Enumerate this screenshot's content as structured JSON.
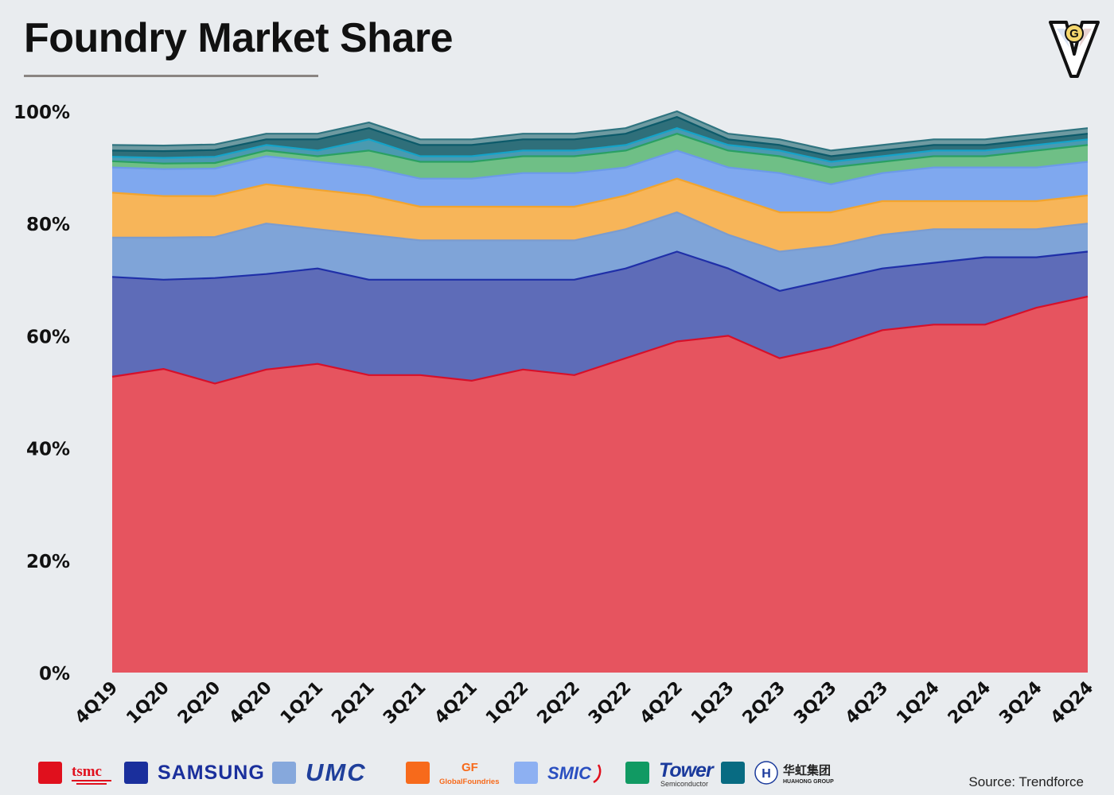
{
  "header": {
    "title": "Foundry Market Share"
  },
  "footer": {
    "source": "Source: Trendforce"
  },
  "colors": {
    "background": "#e9ecef",
    "tsmc": "#e6545f",
    "samsung": "#5e6cb8",
    "umc": "#7fa4d8",
    "globalfoundries": "#f7b559",
    "smic": "#7fa8ef",
    "tower": "#6fbf86",
    "vis": "#4a9ab0",
    "pss": "#2f6f7a",
    "hua_hong": "#6e9aa1"
  },
  "legend": [
    {
      "name": "tsmc",
      "swatch": "#e0101d",
      "logo_text": "tsmc",
      "icon": "tsmc-logo"
    },
    {
      "name": "SAMSUNG",
      "swatch": "#1a2f9c",
      "logo_text": "SAMSUNG",
      "icon": "samsung-logo"
    },
    {
      "name": "UMC",
      "swatch": "#86a8dc",
      "logo_text": "UMC",
      "icon": "umc-logo"
    },
    {
      "name": "GlobalFoundries",
      "swatch": "#f76a1b",
      "logo_text": "GlobalFoundries",
      "icon": "globalfoundries-logo"
    },
    {
      "name": "SMIC",
      "swatch": "#8db0f2",
      "logo_text": "SMIC",
      "icon": "smic-logo"
    },
    {
      "name": "Tower Semiconductor",
      "swatch": "#119a63",
      "logo_text": "Tower",
      "logo_subtext": "Semiconductor",
      "icon": "tower-logo"
    },
    {
      "name": "HUAHONG GROUP",
      "swatch": "#086b82",
      "logo_text": "华虹集团",
      "logo_subtext": "HUAHONG GROUP",
      "icon": "huahong-logo"
    }
  ],
  "chart_data": {
    "type": "area",
    "stacked": true,
    "categories": [
      "4Q19",
      "1Q20",
      "2Q20",
      "4Q20",
      "1Q21",
      "2Q21",
      "3Q21",
      "4Q21",
      "1Q22",
      "2Q22",
      "3Q22",
      "4Q22",
      "1Q23",
      "2Q23",
      "3Q23",
      "4Q23",
      "1Q24",
      "2Q24",
      "3Q24",
      "4Q24"
    ],
    "y_ticks": [
      "0%",
      "20%",
      "40%",
      "60%",
      "80%",
      "100%"
    ],
    "ylim": [
      0,
      100
    ],
    "grid": false,
    "legend_position": "bottom",
    "series": [
      {
        "key": "tsmc",
        "color": "#e6545f",
        "line": "#d6102a",
        "values": [
          52.7,
          54.1,
          51.5,
          54.0,
          55.0,
          53.0,
          53.0,
          52.0,
          54.0,
          53.0,
          56.0,
          59.0,
          60.0,
          56.0,
          58.0,
          61.0,
          62.0,
          62.0,
          65.0,
          67.0
        ]
      },
      {
        "key": "samsung",
        "color": "#5e6cb8",
        "line": "#1f2fa8",
        "values": [
          17.8,
          15.9,
          18.8,
          17.0,
          17.0,
          17.0,
          17.0,
          18.0,
          16.0,
          17.0,
          16.0,
          16.0,
          12.0,
          12.0,
          12.0,
          11.0,
          11.0,
          12.0,
          9.0,
          8.0
        ]
      },
      {
        "key": "umc",
        "color": "#7fa4d8",
        "line": "#7b9ccf",
        "values": [
          7.0,
          7.5,
          7.3,
          9.0,
          7.0,
          8.0,
          7.0,
          7.0,
          7.0,
          7.0,
          7.0,
          7.0,
          6.0,
          7.0,
          6.0,
          6.0,
          6.0,
          5.0,
          5.0,
          5.0
        ]
      },
      {
        "key": "globalfoundries",
        "color": "#f7b559",
        "line": "#f2a42e",
        "values": [
          8.0,
          7.4,
          7.3,
          7.0,
          7.0,
          7.0,
          6.0,
          6.0,
          6.0,
          6.0,
          6.0,
          6.0,
          7.0,
          7.0,
          6.0,
          6.0,
          5.0,
          5.0,
          5.0,
          5.0
        ]
      },
      {
        "key": "smic",
        "color": "#7fa8ef",
        "line": "#6c9ae8",
        "values": [
          4.5,
          4.8,
          4.9,
          5.0,
          5.0,
          5.0,
          5.0,
          5.0,
          6.0,
          6.0,
          5.0,
          5.0,
          5.0,
          7.0,
          5.0,
          5.0,
          6.0,
          6.0,
          6.0,
          6.0
        ]
      },
      {
        "key": "tower",
        "color": "#6fbf86",
        "line": "#2aa063",
        "values": [
          1.1,
          1.0,
          1.0,
          1.0,
          1.0,
          3.0,
          3.0,
          3.0,
          3.0,
          3.0,
          3.0,
          3.0,
          3.0,
          3.0,
          3.0,
          2.0,
          2.0,
          2.0,
          3.0,
          3.0
        ]
      },
      {
        "key": "vis",
        "color": "#4a9ab0",
        "line": "#15a3c8",
        "values": [
          0.8,
          1.0,
          1.1,
          1.0,
          1.0,
          2.0,
          1.0,
          1.0,
          1.0,
          1.0,
          1.0,
          1.0,
          1.0,
          1.0,
          1.0,
          1.0,
          1.0,
          1.0,
          1.0,
          1.0
        ]
      },
      {
        "key": "pss",
        "color": "#2f6f7a",
        "line": "#0c5a6a",
        "values": [
          1.1,
          1.2,
          1.2,
          1.0,
          2.0,
          2.0,
          2.0,
          2.0,
          2.0,
          2.0,
          2.0,
          2.0,
          1.0,
          1.0,
          1.0,
          1.0,
          1.0,
          1.0,
          1.0,
          1.0
        ]
      },
      {
        "key": "hua_hong",
        "color": "#6e9aa1",
        "line": "#2f7480",
        "values": [
          1.0,
          1.0,
          1.0,
          1.0,
          1.0,
          1.0,
          1.0,
          1.0,
          1.0,
          1.0,
          1.0,
          1.0,
          1.0,
          1.0,
          1.0,
          1.0,
          1.0,
          1.0,
          1.0,
          1.0
        ]
      }
    ]
  }
}
